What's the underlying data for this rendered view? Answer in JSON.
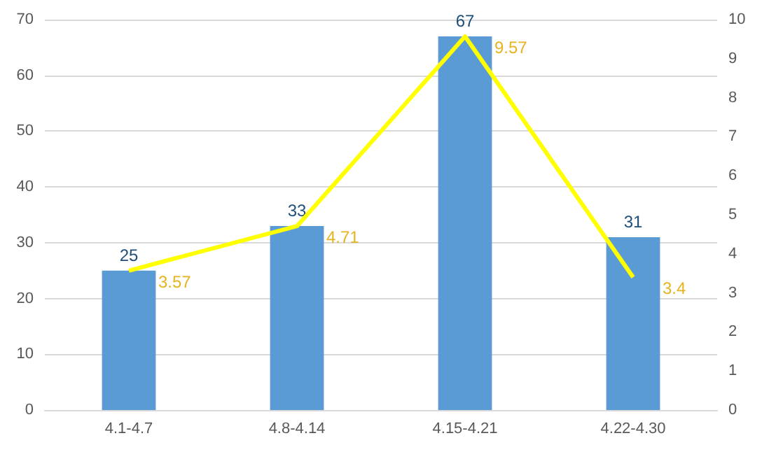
{
  "chart_data": {
    "type": "bar",
    "categories": [
      "4.1-4.7",
      "4.8-4.14",
      "4.15-4.21",
      "4.22-4.30"
    ],
    "series": [
      {
        "color": "#5b9bd5",
        "values": [
          25,
          33,
          67,
          31
        ]
      },
      {
        "type": "line",
        "axis": "y2",
        "color": "#ffff00",
        "values": [
          3.57,
          4.71,
          9.57,
          3.4
        ]
      }
    ],
    "ylim": [
      0,
      70
    ],
    "yticks": [
      0,
      10,
      20,
      30,
      40,
      50,
      60,
      70
    ],
    "y2lim": [
      0,
      10
    ],
    "y2ticks": [
      0,
      1,
      2,
      3,
      4,
      5,
      6,
      7,
      8,
      9,
      10
    ],
    "grid": "y",
    "data_labels": true,
    "marker": "none"
  }
}
